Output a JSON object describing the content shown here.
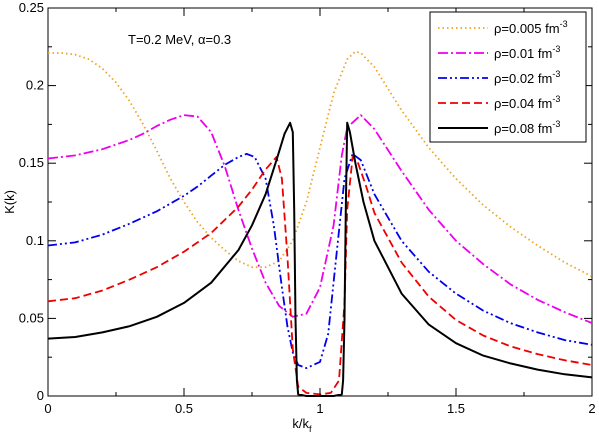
{
  "chart_data": {
    "type": "line",
    "xlabel": "k/k",
    "xlabel_sub": "f",
    "ylabel": "K(k)",
    "xlim": [
      0,
      2
    ],
    "ylim": [
      0,
      0.25
    ],
    "xticks": [
      0,
      0.5,
      1,
      1.5,
      2
    ],
    "yticks": [
      0,
      0.05,
      0.1,
      0.15,
      0.2,
      0.25
    ],
    "xtick_labels": [
      "0",
      "0.5",
      "1",
      "1.5",
      "2"
    ],
    "ytick_labels": [
      "0",
      "0.05",
      "0.1",
      "0.15",
      "0.2",
      "0.25"
    ],
    "grid": false,
    "legend_position": "top-right",
    "annotation": "T=0.2 MeV, α=0.3",
    "series": [
      {
        "name": "ρ=0.005 fm",
        "name_sup": "-3",
        "color": "#f2a31a",
        "style": "dotted",
        "x": [
          0,
          0.05,
          0.1,
          0.15,
          0.2,
          0.25,
          0.3,
          0.35,
          0.4,
          0.45,
          0.5,
          0.55,
          0.6,
          0.65,
          0.7,
          0.75,
          0.8,
          0.85,
          0.9,
          0.95,
          1.0,
          1.05,
          1.1,
          1.13,
          1.15,
          1.2,
          1.25,
          1.3,
          1.4,
          1.5,
          1.6,
          1.7,
          1.8,
          1.9,
          2.0
        ],
        "y": [
          0.221,
          0.221,
          0.22,
          0.217,
          0.211,
          0.202,
          0.19,
          0.175,
          0.158,
          0.14,
          0.125,
          0.112,
          0.102,
          0.094,
          0.087,
          0.083,
          0.083,
          0.087,
          0.1,
          0.125,
          0.16,
          0.195,
          0.217,
          0.222,
          0.221,
          0.212,
          0.198,
          0.184,
          0.16,
          0.14,
          0.123,
          0.109,
          0.097,
          0.086,
          0.077
        ]
      },
      {
        "name": "ρ=0.01 fm",
        "name_sup": "-3",
        "color": "#ee00ee",
        "style": "dash-dot",
        "x": [
          0,
          0.1,
          0.2,
          0.3,
          0.35,
          0.4,
          0.45,
          0.5,
          0.55,
          0.6,
          0.65,
          0.7,
          0.75,
          0.8,
          0.85,
          0.9,
          0.95,
          1.0,
          1.05,
          1.08,
          1.1,
          1.15,
          1.2,
          1.3,
          1.4,
          1.5,
          1.6,
          1.7,
          1.8,
          1.9,
          2.0
        ],
        "y": [
          0.153,
          0.155,
          0.159,
          0.165,
          0.169,
          0.174,
          0.178,
          0.181,
          0.18,
          0.17,
          0.148,
          0.12,
          0.095,
          0.073,
          0.058,
          0.051,
          0.053,
          0.07,
          0.11,
          0.155,
          0.173,
          0.181,
          0.172,
          0.145,
          0.12,
          0.1,
          0.085,
          0.072,
          0.062,
          0.054,
          0.047
        ]
      },
      {
        "name": "ρ=0.02 fm",
        "name_sup": "-3",
        "color": "#0000ee",
        "style": "dash-dot-dot",
        "x": [
          0,
          0.1,
          0.2,
          0.3,
          0.4,
          0.5,
          0.55,
          0.6,
          0.65,
          0.7,
          0.73,
          0.76,
          0.8,
          0.83,
          0.86,
          0.88,
          0.9,
          0.92,
          0.95,
          1.0,
          1.03,
          1.06,
          1.09,
          1.12,
          1.15,
          1.2,
          1.3,
          1.4,
          1.5,
          1.6,
          1.7,
          1.8,
          1.9,
          2.0
        ],
        "y": [
          0.097,
          0.099,
          0.104,
          0.111,
          0.119,
          0.129,
          0.135,
          0.142,
          0.149,
          0.154,
          0.156,
          0.154,
          0.14,
          0.11,
          0.07,
          0.045,
          0.028,
          0.02,
          0.018,
          0.022,
          0.04,
          0.09,
          0.14,
          0.156,
          0.152,
          0.13,
          0.1,
          0.08,
          0.066,
          0.055,
          0.047,
          0.041,
          0.036,
          0.033
        ]
      },
      {
        "name": "ρ=0.04 fm",
        "name_sup": "-3",
        "color": "#ee0000",
        "style": "dashed",
        "x": [
          0,
          0.1,
          0.2,
          0.3,
          0.4,
          0.5,
          0.6,
          0.7,
          0.75,
          0.8,
          0.84,
          0.86,
          0.88,
          0.9,
          0.92,
          0.95,
          1.0,
          1.04,
          1.07,
          1.09,
          1.1,
          1.12,
          1.14,
          1.17,
          1.2,
          1.3,
          1.4,
          1.5,
          1.6,
          1.7,
          1.8,
          1.9,
          2.0
        ],
        "y": [
          0.061,
          0.063,
          0.068,
          0.075,
          0.083,
          0.093,
          0.105,
          0.122,
          0.133,
          0.146,
          0.154,
          0.14,
          0.09,
          0.03,
          0.006,
          0.002,
          0.001,
          0.002,
          0.01,
          0.06,
          0.12,
          0.154,
          0.15,
          0.135,
          0.118,
          0.086,
          0.064,
          0.049,
          0.039,
          0.032,
          0.027,
          0.023,
          0.02
        ]
      },
      {
        "name": "ρ=0.08 fm",
        "name_sup": "-3",
        "color": "#000000",
        "style": "solid",
        "x": [
          0,
          0.1,
          0.2,
          0.3,
          0.4,
          0.5,
          0.6,
          0.7,
          0.75,
          0.8,
          0.84,
          0.87,
          0.89,
          0.9,
          0.905,
          0.91,
          0.915,
          0.92,
          0.95,
          1.0,
          1.05,
          1.08,
          1.085,
          1.09,
          1.095,
          1.1,
          1.11,
          1.13,
          1.16,
          1.2,
          1.3,
          1.4,
          1.5,
          1.6,
          1.7,
          1.8,
          1.9,
          2.0
        ],
        "y": [
          0.037,
          0.038,
          0.041,
          0.045,
          0.051,
          0.06,
          0.073,
          0.094,
          0.11,
          0.13,
          0.152,
          0.169,
          0.176,
          0.17,
          0.12,
          0.05,
          0.01,
          0.001,
          0.0,
          0.0,
          0.0,
          0.001,
          0.01,
          0.05,
          0.12,
          0.176,
          0.17,
          0.15,
          0.125,
          0.1,
          0.066,
          0.046,
          0.034,
          0.026,
          0.021,
          0.017,
          0.014,
          0.012
        ]
      }
    ]
  }
}
